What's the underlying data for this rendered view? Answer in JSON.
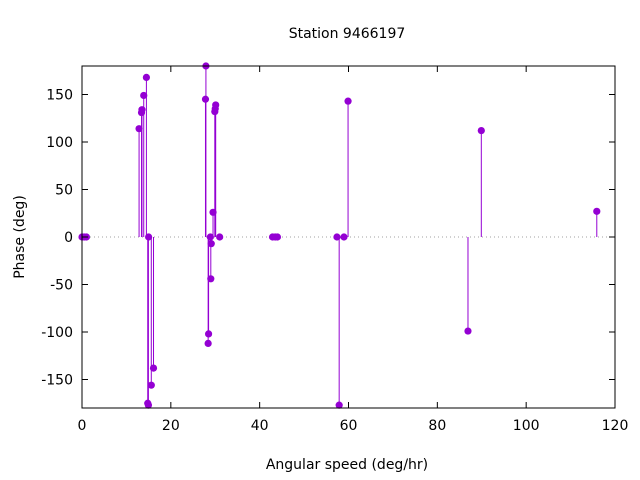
{
  "chart_data": {
    "type": "scatter",
    "style": "impulses-with-points",
    "title": "Station 9466197",
    "xlabel": "Angular speed (deg/hr)",
    "ylabel": "Phase (deg)",
    "xlim": [
      0,
      120
    ],
    "ylim": [
      -180,
      180
    ],
    "xticks": [
      0,
      20,
      40,
      60,
      80,
      100,
      120
    ],
    "yticks": [
      -150,
      -100,
      -50,
      0,
      50,
      100,
      150
    ],
    "grid": false,
    "zero_line": "dotted",
    "color": "#9400d3",
    "points": [
      {
        "x": 0.0,
        "y": 0
      },
      {
        "x": 0.5,
        "y": 0
      },
      {
        "x": 1.0,
        "y": 0
      },
      {
        "x": 12.85,
        "y": 114
      },
      {
        "x": 13.4,
        "y": 131
      },
      {
        "x": 13.5,
        "y": 134
      },
      {
        "x": 13.9,
        "y": 149
      },
      {
        "x": 14.5,
        "y": 168
      },
      {
        "x": 14.8,
        "y": -175
      },
      {
        "x": 14.95,
        "y": -177
      },
      {
        "x": 15.0,
        "y": 0
      },
      {
        "x": 15.6,
        "y": -156
      },
      {
        "x": 16.1,
        "y": -138
      },
      {
        "x": 27.8,
        "y": 145
      },
      {
        "x": 27.9,
        "y": 180
      },
      {
        "x": 28.4,
        "y": -112
      },
      {
        "x": 28.5,
        "y": -102
      },
      {
        "x": 28.9,
        "y": 0
      },
      {
        "x": 29.0,
        "y": -44
      },
      {
        "x": 29.1,
        "y": -7
      },
      {
        "x": 29.5,
        "y": 26
      },
      {
        "x": 29.9,
        "y": 132
      },
      {
        "x": 30.0,
        "y": 135
      },
      {
        "x": 30.1,
        "y": 139
      },
      {
        "x": 31.0,
        "y": 0
      },
      {
        "x": 42.9,
        "y": 0
      },
      {
        "x": 43.5,
        "y": 0
      },
      {
        "x": 44.0,
        "y": 0
      },
      {
        "x": 57.4,
        "y": 0
      },
      {
        "x": 57.9,
        "y": -177
      },
      {
        "x": 58.98,
        "y": 0
      },
      {
        "x": 59.9,
        "y": 143
      },
      {
        "x": 86.9,
        "y": -99
      },
      {
        "x": 89.9,
        "y": 112
      },
      {
        "x": 115.9,
        "y": 27
      }
    ]
  }
}
